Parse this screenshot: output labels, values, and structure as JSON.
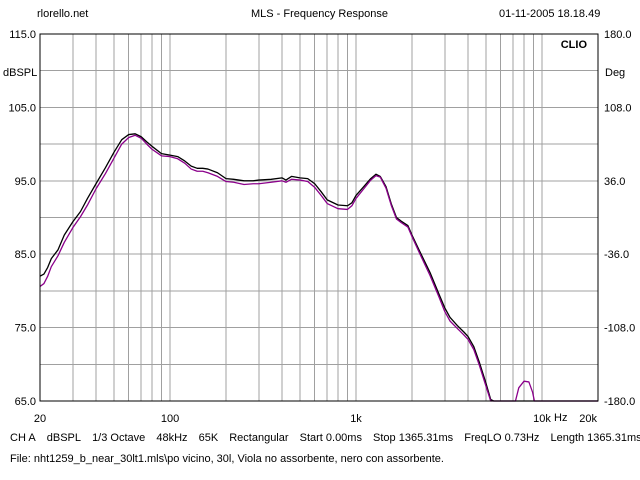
{
  "header": {
    "site": "rlorello.net",
    "title": "MLS - Frequency Response",
    "datetime": "01-11-2005 18.18.49"
  },
  "brand": "CLIO",
  "left_axis_unit": "dBSPL",
  "right_axis_unit": "Deg",
  "x_unit": "Hz",
  "status_line": {
    "channel": "CH A",
    "unit": "dBSPL",
    "smoothing": "1/3 Octave",
    "sample_rate": "48kHz",
    "size": "65K",
    "window": "Rectangular",
    "start": "Start 0.00ms",
    "stop": "Stop 1365.31ms",
    "freqlo": "FreqLO 0.73Hz",
    "length": "Length 1365.31ms"
  },
  "file_line": "File: nht1259_b_near_30lt1.mls\\po vicino, 30l, Viola no assorbente, nero con assorbente.",
  "colors": {
    "background": "#ffffff",
    "grid": "#a0a0a0",
    "frame": "#000000",
    "trace_black": "#000000",
    "trace_purple": "#8b008b"
  },
  "chart_data": {
    "type": "line",
    "title": "MLS - Frequency Response",
    "xscale": "log",
    "xlim": [
      20,
      20000
    ],
    "ylim": [
      65,
      115
    ],
    "y2lim": [
      -180,
      180
    ],
    "x_ticks": [
      {
        "value": 20,
        "label": "20"
      },
      {
        "value": 100,
        "label": "100"
      },
      {
        "value": 1000,
        "label": "1k"
      },
      {
        "value": 10000,
        "label": "10k"
      },
      {
        "value": 20000,
        "label": "20k"
      }
    ],
    "y_ticks": [
      {
        "value": 115,
        "label": "115.0"
      },
      {
        "value": 105,
        "label": "105.0"
      },
      {
        "value": 95,
        "label": "95.0"
      },
      {
        "value": 85,
        "label": "85.0"
      },
      {
        "value": 75,
        "label": "75.0"
      },
      {
        "value": 65,
        "label": "65.0"
      }
    ],
    "y2_ticks": [
      {
        "value": 180,
        "label": "180.0"
      },
      {
        "value": 108,
        "label": "108.0"
      },
      {
        "value": 36,
        "label": "36.0"
      },
      {
        "value": -36,
        "label": "-36.0"
      },
      {
        "value": -108,
        "label": "-108.0"
      },
      {
        "value": -180,
        "label": "-180.0"
      }
    ],
    "series": [
      {
        "color": "#000000",
        "points": [
          [
            20,
            82
          ],
          [
            21,
            82.3
          ],
          [
            22,
            83.2
          ],
          [
            23,
            84.4
          ],
          [
            25,
            85.6
          ],
          [
            27,
            87.6
          ],
          [
            30,
            89.4
          ],
          [
            33,
            90.8
          ],
          [
            36,
            92.6
          ],
          [
            40,
            94.6
          ],
          [
            45,
            96.8
          ],
          [
            50,
            98.9
          ],
          [
            55,
            100.6
          ],
          [
            60,
            101.3
          ],
          [
            65,
            101.4
          ],
          [
            70,
            101
          ],
          [
            75,
            100.3
          ],
          [
            80,
            99.7
          ],
          [
            90,
            98.7
          ],
          [
            100,
            98.5
          ],
          [
            110,
            98.3
          ],
          [
            120,
            97.7
          ],
          [
            130,
            97
          ],
          [
            140,
            96.7
          ],
          [
            150,
            96.7
          ],
          [
            160,
            96.6
          ],
          [
            180,
            96.1
          ],
          [
            200,
            95.3
          ],
          [
            220,
            95.2
          ],
          [
            250,
            95
          ],
          [
            280,
            95
          ],
          [
            300,
            95.1
          ],
          [
            350,
            95.2
          ],
          [
            400,
            95.4
          ],
          [
            420,
            95.1
          ],
          [
            450,
            95.6
          ],
          [
            500,
            95.4
          ],
          [
            550,
            95.3
          ],
          [
            600,
            94.6
          ],
          [
            650,
            93.5
          ],
          [
            700,
            92.4
          ],
          [
            800,
            91.7
          ],
          [
            900,
            91.6
          ],
          [
            950,
            92
          ],
          [
            1000,
            93
          ],
          [
            1100,
            94.2
          ],
          [
            1200,
            95.3
          ],
          [
            1280,
            95.9
          ],
          [
            1350,
            95.6
          ],
          [
            1450,
            94.2
          ],
          [
            1550,
            91.8
          ],
          [
            1650,
            90
          ],
          [
            1750,
            89.5
          ],
          [
            1900,
            88.9
          ],
          [
            2000,
            87.6
          ],
          [
            2200,
            85.4
          ],
          [
            2500,
            82.5
          ],
          [
            2800,
            79.5
          ],
          [
            3000,
            77.7
          ],
          [
            3200,
            76.4
          ],
          [
            3500,
            75.3
          ],
          [
            3800,
            74.4
          ],
          [
            4000,
            73.8
          ],
          [
            4300,
            72.4
          ],
          [
            4600,
            70.3
          ],
          [
            5000,
            67.4
          ],
          [
            5300,
            65.2
          ],
          [
            5500,
            65
          ],
          [
            8000,
            65
          ],
          [
            20000,
            65
          ]
        ]
      },
      {
        "color": "#8b008b",
        "points": [
          [
            20,
            80.6
          ],
          [
            21,
            81
          ],
          [
            22,
            82
          ],
          [
            23,
            83.3
          ],
          [
            25,
            84.8
          ],
          [
            27,
            86.6
          ],
          [
            30,
            88.6
          ],
          [
            33,
            90.1
          ],
          [
            36,
            91.7
          ],
          [
            40,
            93.9
          ],
          [
            45,
            96
          ],
          [
            50,
            98.1
          ],
          [
            55,
            100
          ],
          [
            60,
            100.9
          ],
          [
            65,
            101.2
          ],
          [
            70,
            100.8
          ],
          [
            75,
            100
          ],
          [
            80,
            99.3
          ],
          [
            90,
            98.4
          ],
          [
            100,
            98.3
          ],
          [
            110,
            98
          ],
          [
            120,
            97.4
          ],
          [
            130,
            96.6
          ],
          [
            140,
            96.3
          ],
          [
            150,
            96.3
          ],
          [
            160,
            96.1
          ],
          [
            180,
            95.6
          ],
          [
            200,
            94.9
          ],
          [
            220,
            94.8
          ],
          [
            250,
            94.5
          ],
          [
            280,
            94.6
          ],
          [
            300,
            94.6
          ],
          [
            350,
            94.8
          ],
          [
            400,
            95
          ],
          [
            420,
            94.8
          ],
          [
            450,
            95.2
          ],
          [
            500,
            95.1
          ],
          [
            550,
            94.9
          ],
          [
            600,
            94.1
          ],
          [
            650,
            93
          ],
          [
            700,
            91.9
          ],
          [
            800,
            91.2
          ],
          [
            900,
            91.1
          ],
          [
            950,
            91.6
          ],
          [
            1000,
            92.6
          ],
          [
            1100,
            93.9
          ],
          [
            1200,
            95.1
          ],
          [
            1280,
            95.7
          ],
          [
            1350,
            95.5
          ],
          [
            1450,
            94
          ],
          [
            1550,
            91.6
          ],
          [
            1650,
            89.8
          ],
          [
            1750,
            89.3
          ],
          [
            1900,
            88.7
          ],
          [
            2000,
            87.4
          ],
          [
            2200,
            85.1
          ],
          [
            2500,
            82.1
          ],
          [
            2800,
            79.1
          ],
          [
            3000,
            77.2
          ],
          [
            3200,
            75.9
          ],
          [
            3500,
            74.9
          ],
          [
            3800,
            74
          ],
          [
            4000,
            73.4
          ],
          [
            4300,
            72
          ],
          [
            4600,
            69.9
          ],
          [
            5000,
            67
          ],
          [
            5300,
            65
          ],
          [
            7200,
            65
          ],
          [
            7500,
            66.8
          ],
          [
            8000,
            67.7
          ],
          [
            8500,
            67.6
          ],
          [
            8900,
            66.2
          ],
          [
            9100,
            65
          ],
          [
            20000,
            65
          ]
        ]
      }
    ]
  }
}
